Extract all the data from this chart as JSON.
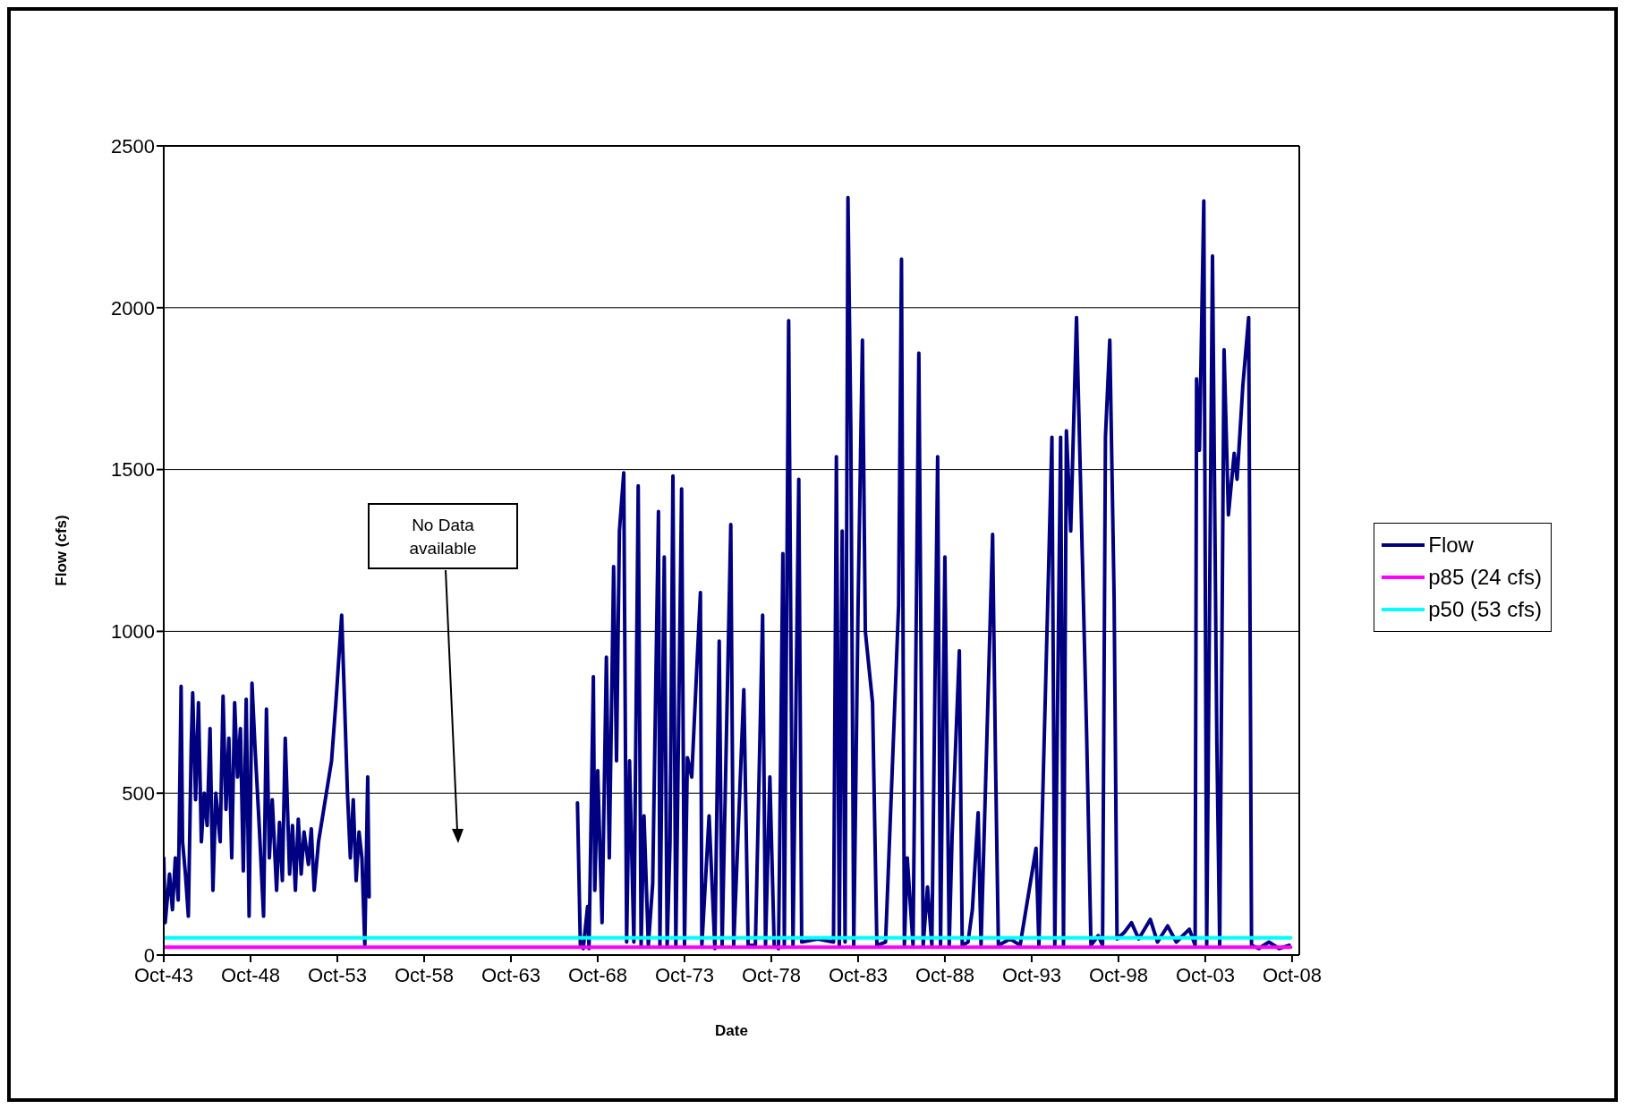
{
  "chart_data": {
    "type": "line",
    "xlabel": "Date",
    "ylabel": "Flow (cfs)",
    "xlim": [
      "1943-10",
      "2009-03"
    ],
    "xticks": [
      {
        "value": "1943-10",
        "label": "Oct-43"
      },
      {
        "value": "1948-10",
        "label": "Oct-48"
      },
      {
        "value": "1953-10",
        "label": "Oct-53"
      },
      {
        "value": "1958-10",
        "label": "Oct-58"
      },
      {
        "value": "1963-10",
        "label": "Oct-63"
      },
      {
        "value": "1968-10",
        "label": "Oct-68"
      },
      {
        "value": "1973-10",
        "label": "Oct-73"
      },
      {
        "value": "1978-10",
        "label": "Oct-78"
      },
      {
        "value": "1983-10",
        "label": "Oct-83"
      },
      {
        "value": "1988-10",
        "label": "Oct-88"
      },
      {
        "value": "1993-10",
        "label": "Oct-93"
      },
      {
        "value": "1998-10",
        "label": "Oct-98"
      },
      {
        "value": "2003-10",
        "label": "Oct-03"
      },
      {
        "value": "2008-10",
        "label": "Oct-08"
      }
    ],
    "ylim": [
      0,
      2500
    ],
    "yticks": [
      0,
      500,
      1000,
      1500,
      2000,
      2500
    ],
    "grid": "y",
    "legend": "right",
    "annotations": [
      "No Data available"
    ],
    "series": [
      {
        "name": "Flow",
        "color": "#000080",
        "x": [
          "1943-10",
          "1943-11",
          "1944-02",
          "1944-04",
          "1944-06",
          "1944-08",
          "1944-10",
          "1944-11",
          "1945-01",
          "1945-03",
          "1945-05",
          "1945-06",
          "1945-08",
          "1945-10",
          "1945-12",
          "1946-02",
          "1946-04",
          "1946-06",
          "1946-08",
          "1946-10",
          "1947-01",
          "1947-03",
          "1947-05",
          "1947-07",
          "1947-09",
          "1947-11",
          "1948-01",
          "1948-03",
          "1948-05",
          "1948-07",
          "1948-09",
          "1948-11",
          "1949-01",
          "1949-04",
          "1949-07",
          "1949-09",
          "1949-11",
          "1950-01",
          "1950-04",
          "1950-06",
          "1950-08",
          "1950-10",
          "1951-01",
          "1951-03",
          "1951-05",
          "1951-07",
          "1951-09",
          "1951-11",
          "1952-02",
          "1952-04",
          "1952-06",
          "1952-09",
          "1953-06",
          "1953-09",
          "1954-01",
          "1954-03",
          "1954-05",
          "1954-07",
          "1954-09",
          "1954-11",
          "1955-01",
          "1955-03",
          "1955-05",
          "1955-07",
          "1955-08",
          "1961-01",
          "1967-08",
          "1967-10",
          "1967-12",
          "1968-03",
          "1968-04",
          "1968-07",
          "1968-08",
          "1968-10",
          "1969-01",
          "1969-04",
          "1969-06",
          "1969-09",
          "1969-11",
          "1970-01",
          "1970-04",
          "1970-06",
          "1970-08",
          "1970-11",
          "1971-02",
          "1971-04",
          "1971-06",
          "1971-09",
          "1971-12",
          "1972-04",
          "1972-05",
          "1972-08",
          "1972-10",
          "1972-12",
          "1973-02",
          "1973-04",
          "1973-08",
          "1973-10",
          "1973-12",
          "1974-03",
          "1974-06",
          "1974-09",
          "1974-10",
          "1975-03",
          "1975-07",
          "1975-10",
          "1975-12",
          "1976-06",
          "1976-08",
          "1977-03",
          "1977-06",
          "1977-11",
          "1978-04",
          "1978-06",
          "1978-09",
          "1978-12",
          "1979-03",
          "1979-06",
          "1979-07",
          "1979-10",
          "1980-01",
          "1980-05",
          "1980-07",
          "1981-06",
          "1982-05",
          "1982-07",
          "1982-09",
          "1982-11",
          "1983-01",
          "1983-03",
          "1983-05",
          "1983-07",
          "1983-10",
          "1984-01",
          "1984-03",
          "1984-08",
          "1984-11",
          "1985-05",
          "1986-02",
          "1986-04",
          "1986-06",
          "1986-08",
          "1986-12",
          "1987-04",
          "1987-07",
          "1987-10",
          "1988-01",
          "1988-05",
          "1988-07",
          "1988-10",
          "1989-01",
          "1989-03",
          "1989-08",
          "1989-10",
          "1990-02",
          "1990-05",
          "1990-09",
          "1990-11",
          "1991-07",
          "1991-09",
          "1991-11",
          "1992-07",
          "1993-02",
          "1994-01",
          "1994-03",
          "1994-09",
          "1994-12",
          "1995-02",
          "1995-06",
          "1995-08",
          "1995-10",
          "1996-01",
          "1996-05",
          "1996-08",
          "1996-12",
          "1997-03",
          "1997-08",
          "1997-11",
          "1998-01",
          "1998-04",
          "1998-07",
          "1998-09",
          "1999-02",
          "1999-07",
          "1999-12",
          "2000-08",
          "2001-01",
          "2001-08",
          "2002-02",
          "2002-11",
          "2003-03",
          "2003-04",
          "2003-06",
          "2003-09",
          "2003-11",
          "2004-03",
          "2004-06",
          "2004-08",
          "2004-11",
          "2005-02",
          "2005-06",
          "2005-08",
          "2005-12",
          "2006-04",
          "2006-06",
          "2006-11",
          "2007-06",
          "2008-01",
          "2008-08"
        ],
        "values": [
          300,
          100,
          250,
          140,
          300,
          170,
          830,
          350,
          250,
          120,
          650,
          810,
          480,
          780,
          350,
          500,
          400,
          700,
          200,
          500,
          350,
          800,
          450,
          670,
          300,
          780,
          550,
          700,
          260,
          790,
          120,
          840,
          650,
          400,
          120,
          760,
          300,
          480,
          200,
          410,
          230,
          670,
          250,
          400,
          200,
          420,
          250,
          380,
          280,
          390,
          200,
          350,
          600,
          780,
          1050,
          780,
          500,
          300,
          480,
          230,
          380,
          300,
          30,
          550,
          180,
          null,
          470,
          30,
          20,
          150,
          20,
          860,
          200,
          570,
          100,
          920,
          300,
          1200,
          600,
          1310,
          1490,
          40,
          600,
          40,
          1450,
          30,
          430,
          30,
          220,
          1370,
          30,
          1230,
          30,
          350,
          1480,
          30,
          1440,
          30,
          610,
          550,
          840,
          1120,
          30,
          430,
          20,
          970,
          30,
          1330,
          30,
          820,
          30,
          30,
          1050,
          30,
          550,
          30,
          20,
          1240,
          30,
          1960,
          30,
          1470,
          40,
          50,
          40,
          1540,
          30,
          1310,
          40,
          2340,
          1620,
          30,
          1080,
          1900,
          1000,
          780,
          30,
          40,
          1080,
          2150,
          30,
          300,
          30,
          1860,
          30,
          210,
          30,
          1540,
          30,
          1230,
          30,
          370,
          940,
          30,
          40,
          140,
          440,
          30,
          1300,
          600,
          30,
          50,
          30,
          330,
          30,
          1070,
          1600,
          30,
          1600,
          30,
          1620,
          1310,
          1970,
          1420,
          680,
          30,
          60,
          30,
          1600,
          1900,
          1100,
          50,
          70,
          100,
          50,
          110,
          40,
          90,
          40,
          80,
          30,
          1780,
          1560,
          2330,
          30,
          2160,
          660,
          30,
          1870,
          1360,
          1550,
          1470,
          1760,
          1970,
          30,
          20,
          40,
          20,
          30
        ]
      },
      {
        "name": "p85  (24 cfs)",
        "color": "#ff00ff",
        "x": [
          "1943-10",
          "2008-09"
        ],
        "values": [
          24,
          24
        ]
      },
      {
        "name": "p50  (53 cfs)",
        "color": "#00ffff",
        "x": [
          "1943-10",
          "2008-09"
        ],
        "values": [
          53,
          53
        ]
      }
    ]
  }
}
